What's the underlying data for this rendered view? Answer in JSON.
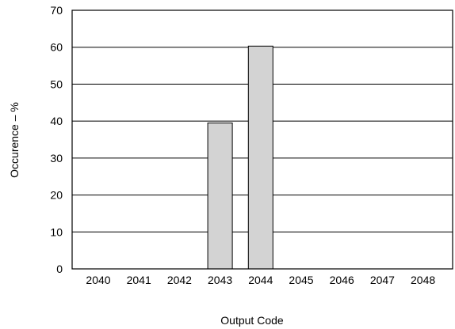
{
  "chart_data": {
    "type": "bar",
    "title": "",
    "xlabel": "Output Code",
    "ylabel": "Occurence – %",
    "categories": [
      "2040",
      "2041",
      "2042",
      "2043",
      "2044",
      "2045",
      "2046",
      "2047",
      "2048"
    ],
    "values": [
      0,
      0,
      0,
      39.5,
      60.3,
      0,
      0,
      0,
      0
    ],
    "ylim": [
      0,
      70
    ],
    "yticks": [
      "0",
      "10",
      "20",
      "30",
      "40",
      "50",
      "60",
      "70"
    ],
    "grid": "horizontal",
    "legend": "none",
    "bar_color": "#d3d3d3",
    "bar_edge_color": "#000000"
  }
}
